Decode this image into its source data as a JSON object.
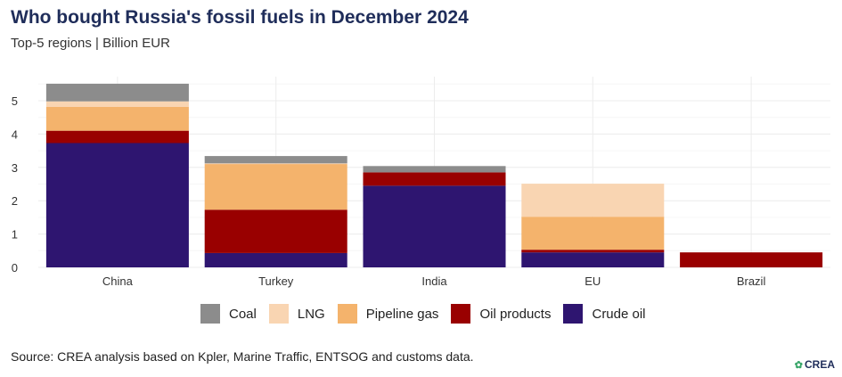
{
  "header": {
    "title": "Who bought Russia's fossil fuels in December 2024",
    "subtitle": "Top-5 regions | Billion EUR"
  },
  "footer": {
    "source": "Source: CREA analysis based on Kpler, Marine Traffic, ENTSOG and customs data.",
    "logo_text": "CREA",
    "logo_icon": "leaf-icon"
  },
  "chart_data": {
    "type": "bar",
    "stacked": true,
    "title": "Who bought Russia's fossil fuels in December 2024",
    "subtitle": "Top-5 regions | Billion EUR",
    "xlabel": "",
    "ylabel": "",
    "ylim": [
      0,
      5.6
    ],
    "yticks": [
      "0",
      "1",
      "2",
      "3",
      "4",
      "5"
    ],
    "grid": true,
    "legend_position": "bottom",
    "categories": [
      "China",
      "Turkey",
      "India",
      "EU",
      "Brazil"
    ],
    "series": [
      {
        "name": "Crude oil",
        "color": "#2e1570",
        "values": [
          3.73,
          0.43,
          2.45,
          0.45,
          0.0
        ]
      },
      {
        "name": "Oil products",
        "color": "#990000",
        "values": [
          0.37,
          1.3,
          0.4,
          0.08,
          0.45
        ]
      },
      {
        "name": "Pipeline gas",
        "color": "#f4b36c",
        "values": [
          0.72,
          1.37,
          0.0,
          0.99,
          0.0
        ]
      },
      {
        "name": "LNG",
        "color": "#f9d5b2",
        "values": [
          0.16,
          0.02,
          0.0,
          0.99,
          0.0
        ]
      },
      {
        "name": "Coal",
        "color": "#8c8c8c",
        "values": [
          0.53,
          0.22,
          0.19,
          0.0,
          0.0
        ]
      }
    ],
    "legend_order": [
      "Coal",
      "LNG",
      "Pipeline gas",
      "Oil products",
      "Crude oil"
    ]
  }
}
